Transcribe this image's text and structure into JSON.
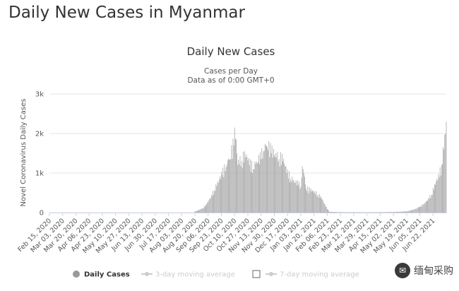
{
  "page": {
    "heading": "Daily New Cases in Myanmar"
  },
  "watermark": {
    "text": "缅甸采购",
    "icon": "wechat-logo-icon"
  },
  "chart_data": {
    "type": "bar",
    "title": "Daily New Cases",
    "subtitle_lines": [
      "Cases per Day",
      "Data as of 0:00 GMT+0"
    ],
    "ylabel": "Novel Coronavirus Daily Cases",
    "xlabel": "",
    "ylim": [
      0,
      3000
    ],
    "yticks": [
      0,
      1000,
      2000,
      3000
    ],
    "ytick_labels": [
      "0",
      "1k",
      "2k",
      "3k"
    ],
    "grid": true,
    "bar_color": "#a6a6a6",
    "x_start": "2020-02-15",
    "x_end": "2021-07-09",
    "xtick_labels": [
      "Feb 15, 2020",
      "Mar 03, 2020",
      "Mar 20, 2020",
      "Apr 06, 2020",
      "Apr 23, 2020",
      "May 10, 2020",
      "May 27, 2020",
      "Jun 13, 2020",
      "Jun 30, 2020",
      "Jul 17, 2020",
      "Aug 03, 2020",
      "Aug 20, 2020",
      "Sep 06, 2020",
      "Sep 23, 2020",
      "Oct 10, 2020",
      "Oct 27, 2020",
      "Nov 13, 2020",
      "Nov 30, 2020",
      "Dec 17, 2020",
      "Jan 03, 2021",
      "Jan 20, 2021",
      "Feb 06, 2021",
      "Feb 23, 2021",
      "Mar 12, 2021",
      "Mar 29, 2021",
      "Apr 15, 2021",
      "May 02, 2021",
      "May 19, 2021",
      "Jun 05, 2021",
      "Jun 22, 2021"
    ],
    "series": [
      {
        "name": "Daily Cases",
        "x": [
          "2020-08-20",
          "2020-08-25",
          "2020-08-30",
          "2020-09-04",
          "2020-09-09",
          "2020-09-14",
          "2020-09-19",
          "2020-09-24",
          "2020-09-29",
          "2020-10-04",
          "2020-10-09",
          "2020-10-10",
          "2020-10-14",
          "2020-10-19",
          "2020-10-24",
          "2020-10-29",
          "2020-11-03",
          "2020-11-08",
          "2020-11-13",
          "2020-11-16",
          "2020-11-21",
          "2020-11-26",
          "2020-12-01",
          "2020-12-06",
          "2020-12-11",
          "2020-12-16",
          "2020-12-21",
          "2020-12-26",
          "2020-12-31",
          "2021-01-03",
          "2021-01-05",
          "2021-01-10",
          "2021-01-15",
          "2021-01-20",
          "2021-01-25",
          "2021-01-30",
          "2021-02-04",
          "2021-02-09",
          "2021-02-24",
          "2021-03-12",
          "2021-03-29",
          "2021-04-15",
          "2021-05-02",
          "2021-05-19",
          "2021-05-26",
          "2021-06-01",
          "2021-06-05",
          "2021-06-10",
          "2021-06-15",
          "2021-06-20",
          "2021-06-25",
          "2021-06-30",
          "2021-07-03",
          "2021-07-06",
          "2021-07-08",
          "2021-07-09"
        ],
        "values": [
          30,
          60,
          110,
          200,
          360,
          560,
          750,
          950,
          1150,
          1350,
          1700,
          2150,
          1200,
          1300,
          1400,
          1200,
          1100,
          1250,
          1350,
          1550,
          1650,
          1500,
          1400,
          1350,
          1300,
          1000,
          850,
          750,
          700,
          650,
          1170,
          600,
          550,
          500,
          450,
          350,
          150,
          20,
          10,
          10,
          8,
          10,
          15,
          30,
          60,
          100,
          150,
          200,
          300,
          450,
          700,
          900,
          1200,
          1600,
          2000,
          2300
        ]
      }
    ],
    "legend": {
      "placement": "bottom",
      "items": [
        {
          "label": "Daily Cases",
          "marker": "circle",
          "color": "#999999",
          "active": true
        },
        {
          "label": "3-day moving average",
          "marker": "line-circle",
          "color": "#cccccc",
          "active": false
        },
        {
          "label": "7-day moving average",
          "marker": "line-circle",
          "color": "#cccccc",
          "active": false
        }
      ]
    }
  }
}
